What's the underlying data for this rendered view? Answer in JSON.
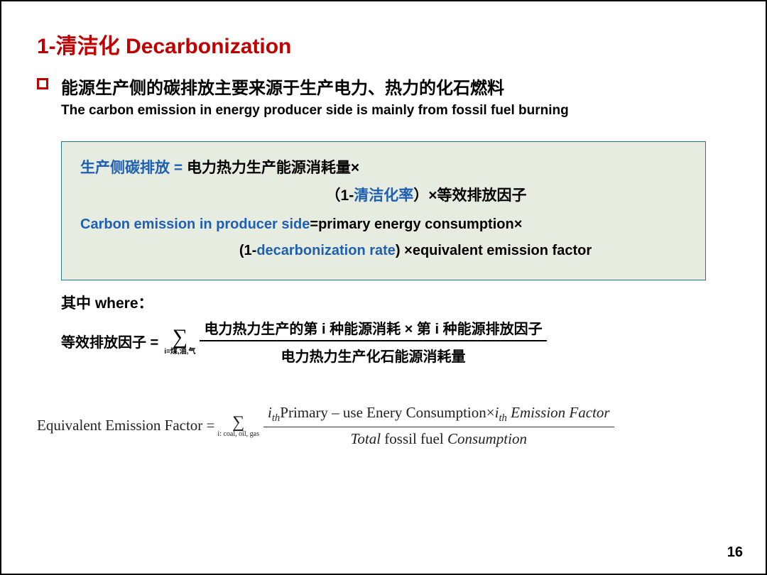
{
  "title": {
    "red": "1-清洁化",
    "red_en": " Decarbonization"
  },
  "bullet": {
    "cn": "能源生产侧的碳排放主要来源于生产电力、热力的化石燃料",
    "en": "The carbon emission in energy producer side is mainly from fossil fuel burning"
  },
  "box": {
    "line1_lhs": "生产侧碳排放 = ",
    "line1_rhs": "电力热力生产能源消耗量×",
    "line2_a": "（1-",
    "line2_b": "清洁化率",
    "line2_c": "）×等效排放因子",
    "en1_lhs": "Carbon emission in producer side",
    "en1_rhs": "=primary energy consumption×",
    "en2_a": "(1-",
    "en2_b": "decarbonization rate",
    "en2_c": ") ×equivalent  emission factor"
  },
  "where": {
    "label": "其中  where：",
    "lhs": "等效排放因子 = ",
    "sigma_sub": "i=煤,油,气",
    "num": "电力热力生产的第 i 种能源消耗 × 第 i 种能源排放因子",
    "den": "电力热力生产化石能源消耗量"
  },
  "eq_en": {
    "lhs": "Equivalent  Emission  Factor = ",
    "sigma_sub": "i: coal, oil, gas",
    "num_i1": "i",
    "num_th1": "th",
    "num_a": "Primary – use Enery Consumption×",
    "num_i2": "i",
    "num_th2": "th",
    "num_b": " Emission Factor",
    "den_a": "Total ",
    "den_b": "fossil fuel",
    "den_c": " Consumption"
  },
  "page": "16",
  "colors": {
    "accent_red": "#c00000",
    "accent_blue": "#1f5fb0",
    "box_bg": "#e7ece0",
    "box_border": "#1f7a8c",
    "text": "#000000"
  }
}
